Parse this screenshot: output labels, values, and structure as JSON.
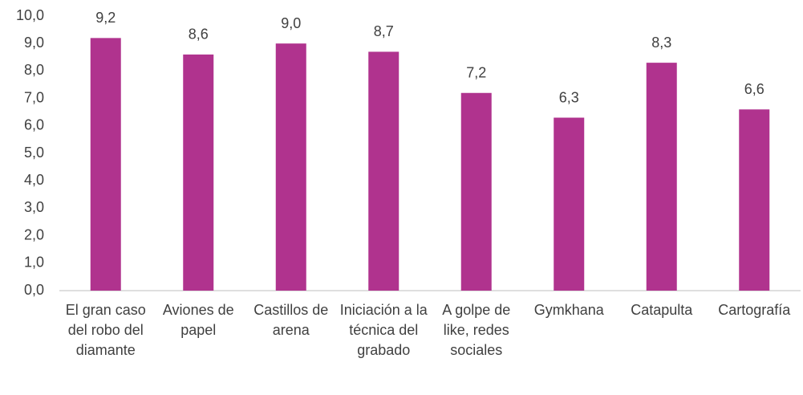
{
  "chart_data": {
    "type": "bar",
    "categories": [
      "El gran caso del robo del diamante",
      "Aviones de papel",
      "Castillos de arena",
      "Iniciación a la técnica del grabado",
      "A golpe de like, redes sociales",
      "Gymkhana",
      "Catapulta",
      "Cartografía"
    ],
    "values": [
      9.2,
      8.6,
      9.0,
      8.7,
      7.2,
      6.3,
      8.3,
      6.6
    ],
    "value_labels": [
      "9,2",
      "8,6",
      "9,0",
      "8,7",
      "7,2",
      "6,3",
      "8,3",
      "6,6"
    ],
    "color": "#b0338e",
    "ylim": [
      0,
      10
    ],
    "yticks": [
      {
        "value": 0,
        "label": "0,0"
      },
      {
        "value": 1,
        "label": "1,0"
      },
      {
        "value": 2,
        "label": "2,0"
      },
      {
        "value": 3,
        "label": "3,0"
      },
      {
        "value": 4,
        "label": "4,0"
      },
      {
        "value": 5,
        "label": "5,0"
      },
      {
        "value": 6,
        "label": "6,0"
      },
      {
        "value": 7,
        "label": "7,0"
      },
      {
        "value": 8,
        "label": "8,0"
      },
      {
        "value": 9,
        "label": "9,0"
      },
      {
        "value": 10,
        "label": "10,0"
      }
    ],
    "grid": false
  }
}
